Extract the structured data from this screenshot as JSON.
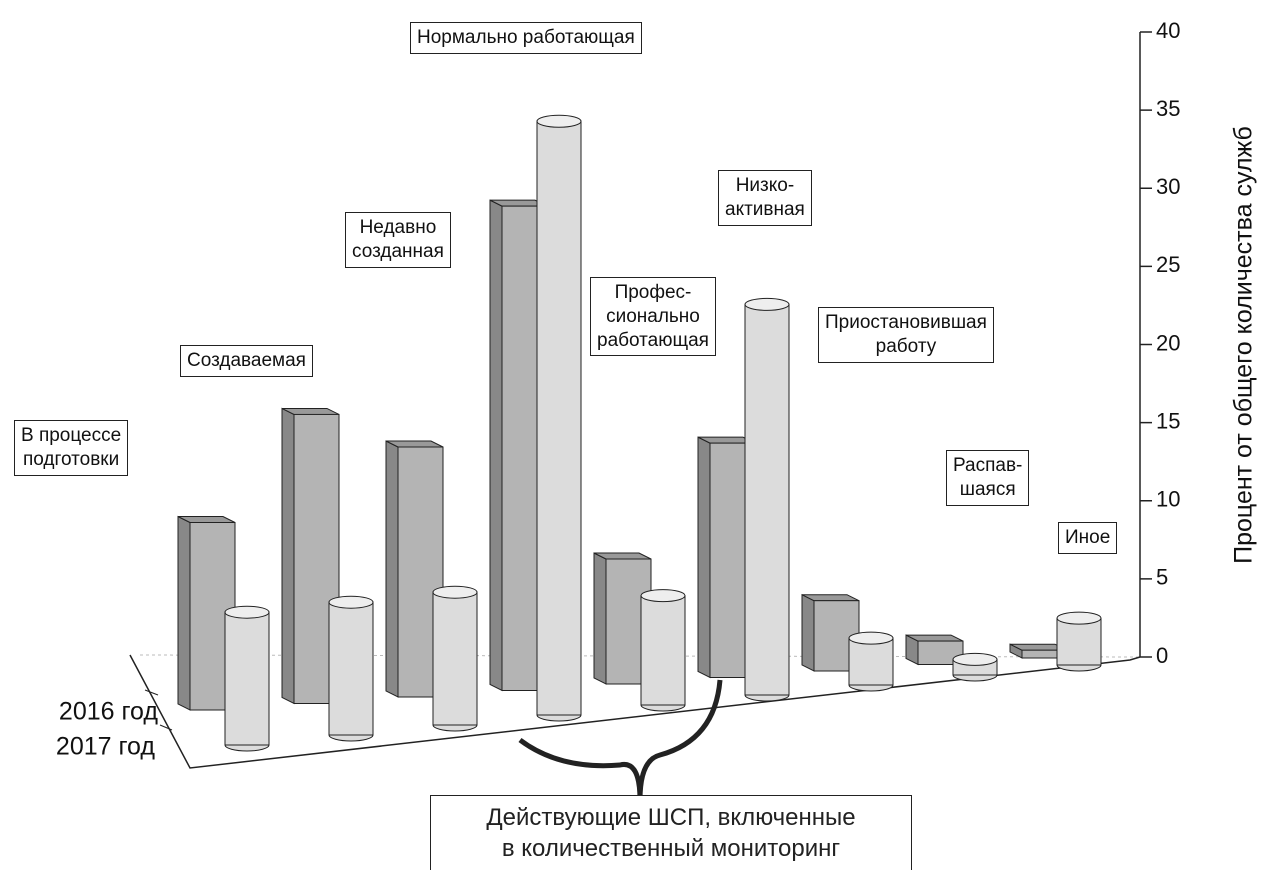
{
  "chart_data": {
    "type": "bar3d",
    "y_label": "Процент от общего количества сулжб",
    "annotation": "Действующие ШСП, включенные\nв количественный мониторинг",
    "categories": [
      "В процессе\nподготовки",
      "Создаваемая",
      "Недавно\nсозданная",
      "Нормально работающая",
      "Профес-\nсионально\nработающая",
      "Низко-\nактивная",
      "Приостановившая\nработу",
      "Распав-\nшаяся",
      "Иное"
    ],
    "series": [
      {
        "name": "2016 год",
        "color": "#b4b4b4",
        "values": [
          12,
          18.5,
          16,
          31,
          8,
          15,
          4.5,
          1.5,
          0.5
        ]
      },
      {
        "name": "2017 год",
        "color": "#dcdcdc",
        "values": [
          8.5,
          8.5,
          8.5,
          38,
          7,
          25,
          3,
          1,
          3
        ]
      }
    ],
    "ylim": [
      0,
      40
    ],
    "yticks": [
      0,
      5,
      10,
      15,
      20,
      25,
      30,
      35,
      40
    ]
  }
}
